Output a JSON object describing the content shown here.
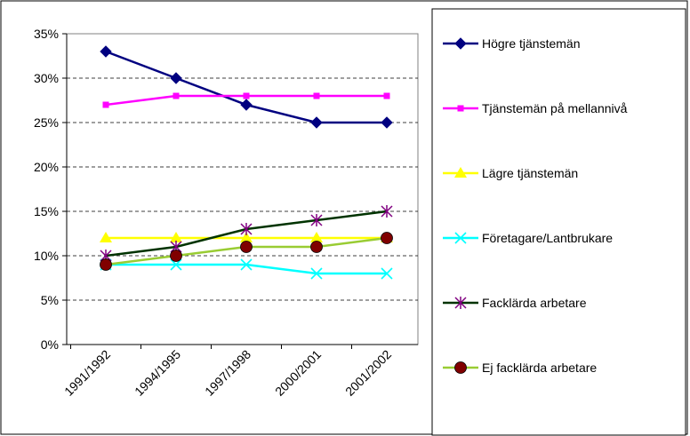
{
  "chart_data": {
    "type": "line",
    "title": "",
    "xlabel": "",
    "ylabel": "",
    "categories": [
      "1991/1992",
      "1994/1995",
      "1997/1998",
      "2000/2001",
      "2001/2002"
    ],
    "ylim": [
      0,
      35
    ],
    "ytick_step": 5,
    "ytick_format": "percent",
    "grid": "horizontal-dashed",
    "legend_position": "right",
    "series": [
      {
        "name": "Högre tjänstemän",
        "values": [
          33,
          30,
          27,
          25,
          25
        ],
        "color": "#000080",
        "marker": "diamond"
      },
      {
        "name": "Tjänstemän på mellannivå",
        "values": [
          27,
          28,
          28,
          28,
          28
        ],
        "color": "#FF00FF",
        "marker": "square"
      },
      {
        "name": "Lägre tjänstemän",
        "values": [
          12,
          12,
          12,
          12,
          12
        ],
        "color": "#FFFF00",
        "marker": "triangle"
      },
      {
        "name": "Företagare/Lantbrukare",
        "values": [
          9,
          9,
          9,
          8,
          8
        ],
        "color": "#00FFFF",
        "marker": "x"
      },
      {
        "name": "Facklärda arbetare",
        "values": [
          10,
          11,
          13,
          14,
          15
        ],
        "color": "#003300",
        "marker_color": "#800080",
        "marker": "star"
      },
      {
        "name": "Ej facklärda arbetare",
        "values": [
          9,
          10,
          11,
          11,
          12
        ],
        "color": "#99CC33",
        "marker_color": "#800000",
        "marker": "circle"
      }
    ]
  }
}
